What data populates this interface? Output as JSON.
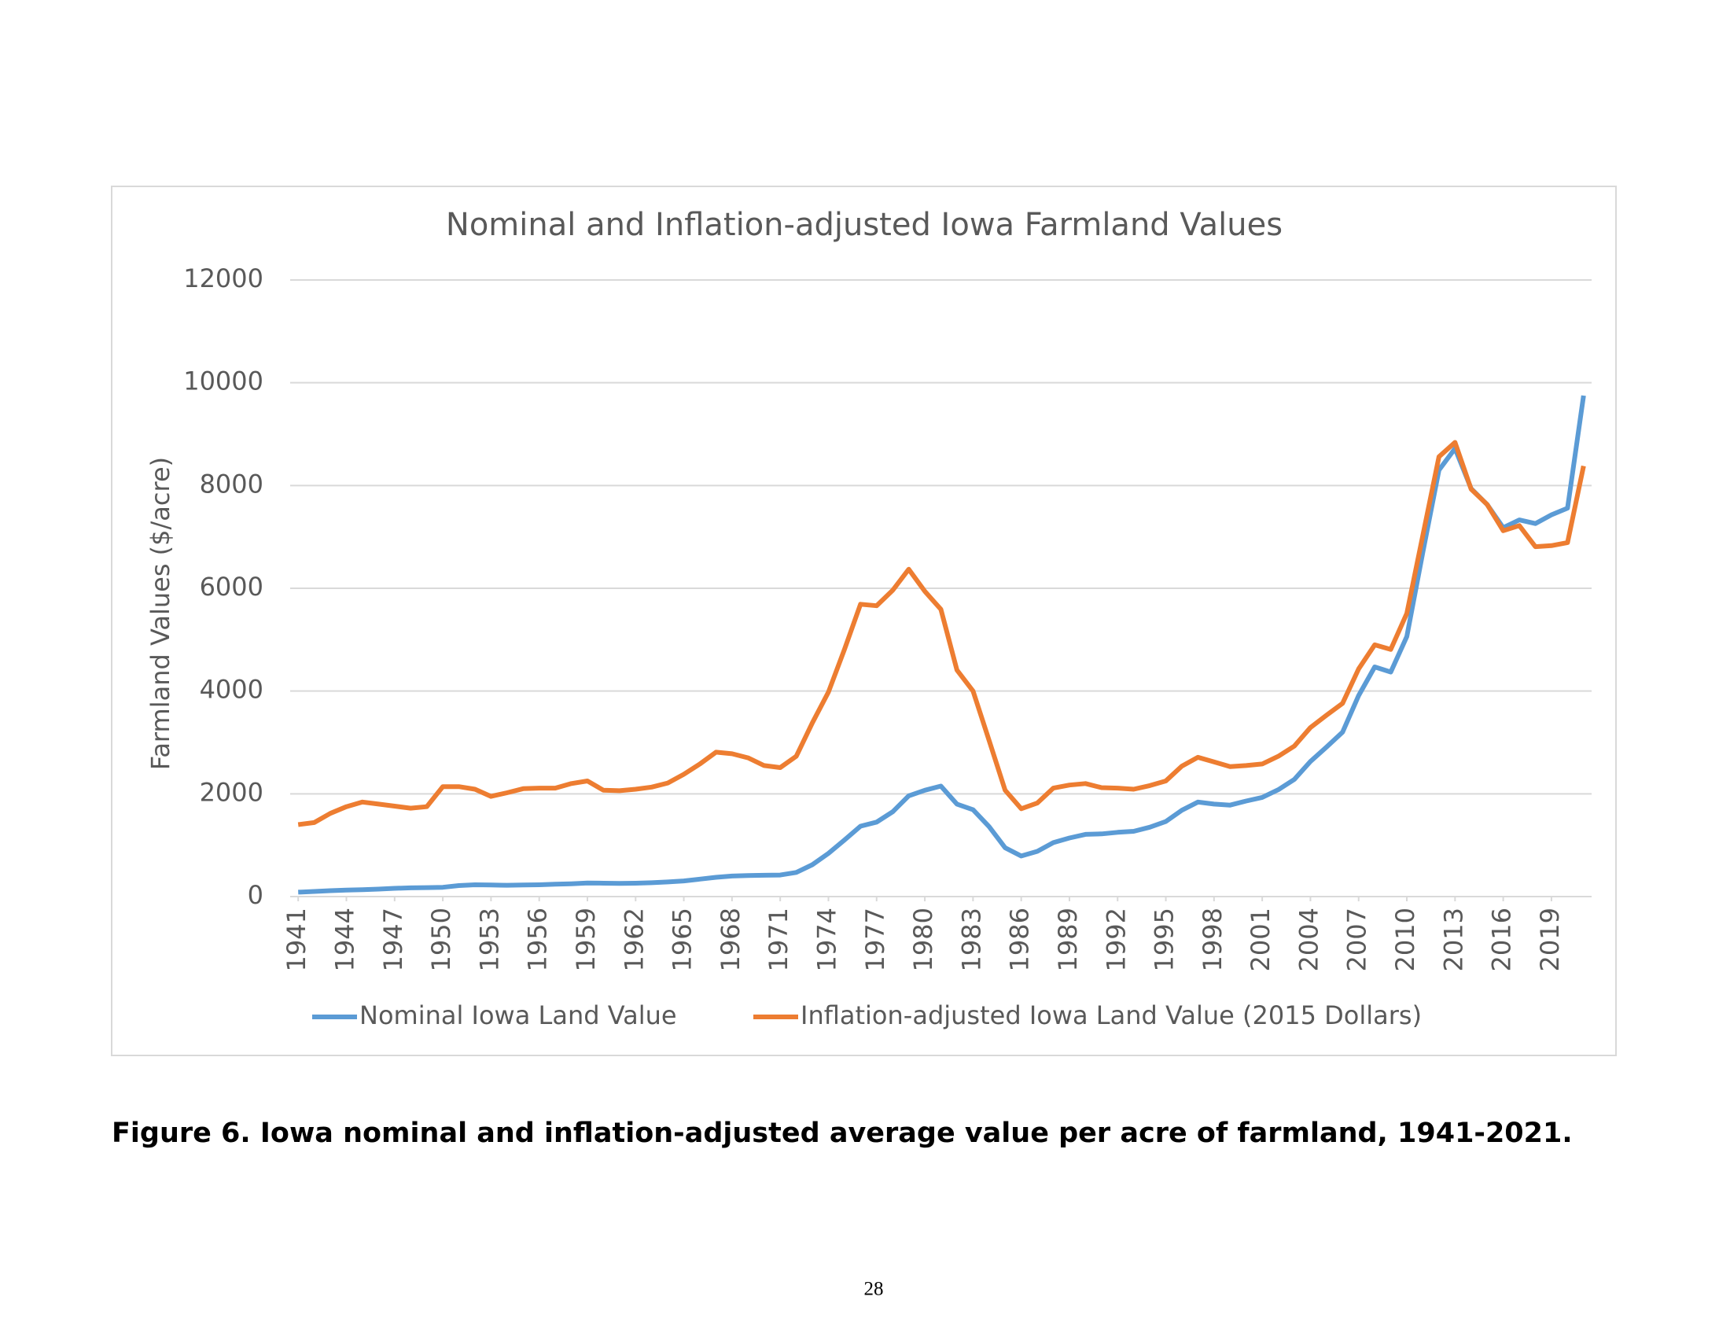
{
  "chart_data": {
    "type": "line",
    "title": "Nominal and Inflation-adjusted Iowa Farmland Values",
    "y_label": "Farmland Values ($/acre)",
    "x": [
      1941,
      1942,
      1943,
      1944,
      1945,
      1946,
      1947,
      1948,
      1949,
      1950,
      1951,
      1952,
      1953,
      1954,
      1955,
      1956,
      1957,
      1958,
      1959,
      1960,
      1961,
      1962,
      1963,
      1964,
      1965,
      1966,
      1967,
      1968,
      1969,
      1970,
      1971,
      1972,
      1973,
      1974,
      1975,
      1976,
      1977,
      1978,
      1979,
      1980,
      1981,
      1982,
      1983,
      1984,
      1985,
      1986,
      1987,
      1988,
      1989,
      1990,
      1991,
      1992,
      1993,
      1994,
      1995,
      1996,
      1997,
      1998,
      1999,
      2000,
      2001,
      2002,
      2003,
      2004,
      2005,
      2006,
      2007,
      2008,
      2009,
      2010,
      2011,
      2012,
      2013,
      2014,
      2015,
      2016,
      2017,
      2018,
      2019,
      2020,
      2021
    ],
    "series": [
      {
        "name": "Nominal Iowa Land Value",
        "color": "#5b9bd5",
        "values": [
          85,
          100,
          115,
          125,
          135,
          145,
          160,
          170,
          175,
          180,
          215,
          230,
          225,
          220,
          225,
          230,
          240,
          250,
          265,
          260,
          255,
          260,
          270,
          285,
          305,
          340,
          375,
          400,
          410,
          415,
          420,
          470,
          620,
          840,
          1100,
          1370,
          1450,
          1650,
          1960,
          2070,
          2150,
          1800,
          1690,
          1360,
          950,
          790,
          880,
          1050,
          1140,
          1210,
          1220,
          1250,
          1270,
          1350,
          1460,
          1680,
          1840,
          1800,
          1780,
          1860,
          1930,
          2080,
          2280,
          2630,
          2910,
          3200,
          3910,
          4470,
          4370,
          5060,
          6710,
          8300,
          8720,
          7940,
          7630,
          7180,
          7330,
          7260,
          7430,
          7560,
          9750
        ]
      },
      {
        "name": "Inflation-adjusted Iowa Land Value (2015 Dollars)",
        "color": "#ed7d31",
        "values": [
          1400,
          1440,
          1620,
          1750,
          1840,
          1800,
          1760,
          1720,
          1750,
          2140,
          2140,
          2090,
          1950,
          2020,
          2100,
          2110,
          2110,
          2200,
          2250,
          2070,
          2060,
          2090,
          2130,
          2210,
          2380,
          2580,
          2810,
          2780,
          2700,
          2550,
          2510,
          2730,
          3380,
          3980,
          4810,
          5690,
          5660,
          5960,
          6370,
          5940,
          5590,
          4410,
          4000,
          3040,
          2070,
          1710,
          1820,
          2110,
          2170,
          2200,
          2120,
          2110,
          2090,
          2160,
          2250,
          2540,
          2710,
          2620,
          2530,
          2550,
          2580,
          2730,
          2930,
          3290,
          3530,
          3760,
          4430,
          4900,
          4810,
          5510,
          7040,
          8560,
          8840,
          7930,
          7630,
          7120,
          7220,
          6810,
          6830,
          6890,
          8380
        ]
      }
    ],
    "xlim": [
      1940.5,
      2021.5
    ],
    "xticks": [
      1941,
      1944,
      1947,
      1950,
      1953,
      1956,
      1959,
      1962,
      1965,
      1968,
      1971,
      1974,
      1977,
      1980,
      1983,
      1986,
      1989,
      1992,
      1995,
      1998,
      2001,
      2004,
      2007,
      2010,
      2013,
      2016,
      2019
    ],
    "ylim": [
      0,
      12000
    ],
    "yticks": [
      0,
      2000,
      4000,
      6000,
      8000,
      10000,
      12000
    ],
    "grid": true,
    "legend": "bottom"
  },
  "caption": "Figure 6. Iowa nominal and inflation-adjusted average value per acre of farmland, 1941-2021.",
  "page_number": "28"
}
